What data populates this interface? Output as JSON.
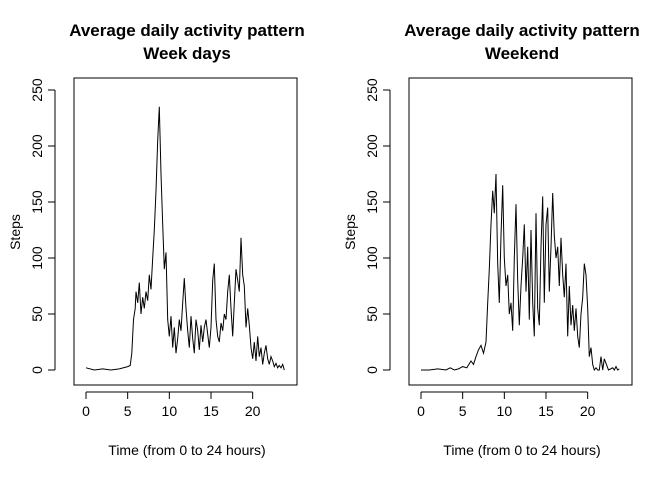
{
  "chart_data": [
    {
      "type": "line",
      "title": "Average daily activity pattern",
      "subtitle": "Week days",
      "xlabel": "Time (from 0 to 24 hours)",
      "ylabel": "Steps",
      "xlim": [
        0,
        24
      ],
      "ylim": [
        0,
        250
      ],
      "xticks": [
        0,
        5,
        10,
        15,
        20
      ],
      "yticks": [
        0,
        50,
        100,
        150,
        200,
        250
      ],
      "grid": false,
      "series": [
        {
          "x": [
            0.0,
            1.0,
            2.0,
            3.0,
            4.0,
            5.0,
            5.3,
            5.5,
            5.7,
            5.9,
            6.0,
            6.2,
            6.4,
            6.6,
            6.8,
            7.0,
            7.2,
            7.4,
            7.6,
            7.8,
            8.0,
            8.2,
            8.4,
            8.6,
            8.8,
            9.0,
            9.2,
            9.4,
            9.6,
            9.8,
            10.0,
            10.2,
            10.4,
            10.6,
            10.8,
            11.0,
            11.2,
            11.4,
            11.6,
            11.8,
            12.0,
            12.2,
            12.4,
            12.6,
            12.8,
            13.0,
            13.2,
            13.4,
            13.6,
            13.8,
            14.0,
            14.2,
            14.4,
            14.6,
            14.8,
            15.0,
            15.2,
            15.4,
            15.6,
            15.8,
            16.0,
            16.2,
            16.4,
            16.6,
            16.8,
            17.0,
            17.2,
            17.4,
            17.6,
            17.8,
            18.0,
            18.2,
            18.4,
            18.6,
            18.8,
            19.0,
            19.2,
            19.4,
            19.6,
            19.8,
            20.0,
            20.2,
            20.4,
            20.6,
            20.8,
            21.0,
            21.2,
            21.4,
            21.6,
            21.8,
            22.0,
            22.2,
            22.4,
            22.6,
            22.8,
            23.0,
            23.2,
            23.4,
            23.6,
            23.8
          ],
          "values": [
            2,
            0,
            1,
            0,
            1,
            3,
            4,
            15,
            45,
            55,
            70,
            60,
            78,
            50,
            65,
            55,
            70,
            62,
            85,
            72,
            100,
            125,
            160,
            205,
            235,
            175,
            130,
            90,
            105,
            45,
            30,
            48,
            20,
            38,
            15,
            28,
            45,
            35,
            60,
            82,
            55,
            35,
            20,
            48,
            28,
            15,
            45,
            35,
            18,
            40,
            25,
            38,
            45,
            32,
            20,
            38,
            80,
            95,
            45,
            30,
            25,
            42,
            35,
            50,
            45,
            70,
            85,
            55,
            30,
            60,
            90,
            80,
            70,
            118,
            85,
            75,
            38,
            55,
            40,
            20,
            10,
            25,
            8,
            30,
            12,
            20,
            5,
            15,
            22,
            10,
            5,
            12,
            8,
            3,
            6,
            2,
            4,
            2,
            5,
            0
          ]
        }
      ]
    },
    {
      "type": "line",
      "title": "Average daily activity pattern",
      "subtitle": "Weekend",
      "xlabel": "Time (from 0 to 24 hours)",
      "ylabel": "Steps",
      "xlim": [
        0,
        24
      ],
      "ylim": [
        0,
        250
      ],
      "xticks": [
        0,
        5,
        10,
        15,
        20
      ],
      "yticks": [
        0,
        50,
        100,
        150,
        200,
        250
      ],
      "grid": false,
      "series": [
        {
          "x": [
            0.0,
            1.0,
            2.0,
            3.0,
            3.5,
            4.0,
            4.5,
            5.0,
            5.5,
            6.0,
            6.3,
            6.6,
            6.9,
            7.2,
            7.5,
            7.8,
            8.0,
            8.2,
            8.4,
            8.6,
            8.8,
            9.0,
            9.2,
            9.4,
            9.6,
            9.8,
            10.0,
            10.2,
            10.4,
            10.6,
            10.8,
            11.0,
            11.2,
            11.4,
            11.6,
            11.8,
            12.0,
            12.2,
            12.4,
            12.6,
            12.8,
            13.0,
            13.2,
            13.4,
            13.6,
            13.8,
            14.0,
            14.2,
            14.4,
            14.6,
            14.8,
            15.0,
            15.2,
            15.4,
            15.6,
            15.8,
            16.0,
            16.2,
            16.4,
            16.6,
            16.8,
            17.0,
            17.2,
            17.4,
            17.6,
            17.8,
            18.0,
            18.2,
            18.4,
            18.6,
            18.8,
            19.0,
            19.2,
            19.4,
            19.6,
            19.8,
            20.0,
            20.2,
            20.4,
            20.6,
            20.8,
            21.0,
            21.2,
            21.4,
            21.6,
            21.8,
            22.0,
            22.5,
            23.0,
            23.2,
            23.4,
            23.6,
            23.8
          ],
          "values": [
            0,
            0,
            1,
            0,
            2,
            0,
            1,
            3,
            2,
            8,
            5,
            12,
            18,
            22,
            15,
            25,
            60,
            90,
            130,
            160,
            140,
            175,
            95,
            60,
            120,
            165,
            100,
            75,
            85,
            50,
            60,
            35,
            100,
            148,
            80,
            40,
            75,
            100,
            130,
            70,
            110,
            45,
            125,
            60,
            30,
            140,
            55,
            40,
            110,
            155,
            60,
            130,
            145,
            70,
            110,
            158,
            120,
            100,
            110,
            75,
            118,
            85,
            65,
            95,
            30,
            75,
            40,
            58,
            35,
            55,
            30,
            20,
            50,
            65,
            95,
            85,
            55,
            12,
            20,
            5,
            0,
            2,
            0,
            0,
            12,
            0,
            10,
            0,
            2,
            0,
            3,
            0,
            1
          ]
        }
      ]
    }
  ]
}
